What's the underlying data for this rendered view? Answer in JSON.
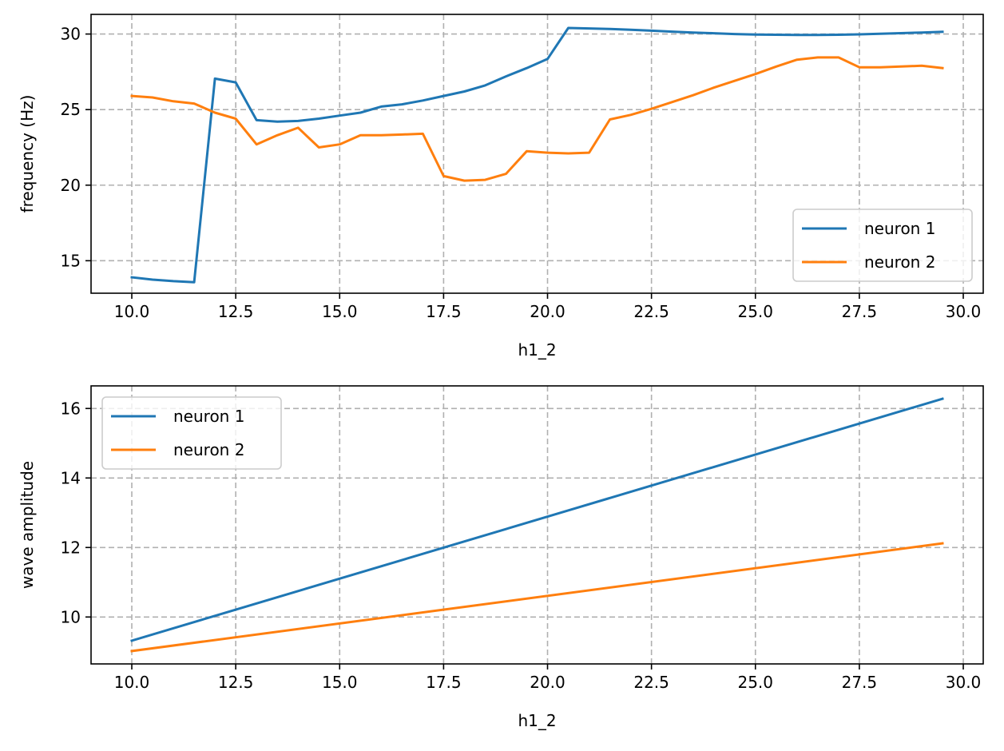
{
  "chart_data": [
    {
      "type": "line",
      "xlabel": "h1_2",
      "ylabel": "frequency (Hz)",
      "xlim": [
        9.02,
        30.48
      ],
      "ylim": [
        12.85,
        31.3
      ],
      "xticks": [
        10.0,
        12.5,
        15.0,
        17.5,
        20.0,
        22.5,
        25.0,
        27.5,
        30.0
      ],
      "xtick_labels": [
        "10.0",
        "12.5",
        "15.0",
        "17.5",
        "20.0",
        "22.5",
        "25.0",
        "27.5",
        "30.0"
      ],
      "yticks": [
        15,
        20,
        25,
        30
      ],
      "ytick_labels": [
        "15",
        "20",
        "25",
        "30"
      ],
      "grid": true,
      "legend_position": "lower-right",
      "series": [
        {
          "name": "neuron 1",
          "color": "#1f77b4",
          "x": [
            10.0,
            10.5,
            11.0,
            11.5,
            12.0,
            12.5,
            13.0,
            13.5,
            14.0,
            14.5,
            15.0,
            15.5,
            16.0,
            16.5,
            17.0,
            17.5,
            18.0,
            18.5,
            19.0,
            19.5,
            20.0,
            20.5,
            21.0,
            21.5,
            22.0,
            22.5,
            23.0,
            23.5,
            24.0,
            24.5,
            25.0,
            25.5,
            26.0,
            26.5,
            27.0,
            27.5,
            28.0,
            28.5,
            29.0,
            29.5
          ],
          "y": [
            13.9,
            13.75,
            13.65,
            13.58,
            27.05,
            26.8,
            24.3,
            24.2,
            24.25,
            24.4,
            24.6,
            24.8,
            25.2,
            25.35,
            25.6,
            25.9,
            26.2,
            26.6,
            27.2,
            27.75,
            28.35,
            30.4,
            30.37,
            30.33,
            30.28,
            30.22,
            30.16,
            30.1,
            30.05,
            30.0,
            29.97,
            29.95,
            29.94,
            29.94,
            29.95,
            29.98,
            30.02,
            30.06,
            30.1,
            30.15
          ]
        },
        {
          "name": "neuron 2",
          "color": "#ff7f0e",
          "x": [
            10.0,
            10.5,
            11.0,
            11.5,
            12.0,
            12.5,
            13.0,
            13.5,
            14.0,
            14.5,
            15.0,
            15.5,
            16.0,
            16.5,
            17.0,
            17.5,
            18.0,
            18.5,
            19.0,
            19.5,
            20.0,
            20.5,
            21.0,
            21.5,
            22.0,
            22.5,
            23.0,
            23.5,
            24.0,
            24.5,
            25.0,
            25.5,
            26.0,
            26.5,
            27.0,
            27.5,
            28.0,
            28.5,
            29.0,
            29.5
          ],
          "y": [
            25.9,
            25.8,
            25.55,
            25.4,
            24.8,
            24.4,
            22.7,
            23.3,
            23.8,
            22.5,
            22.7,
            23.3,
            23.3,
            23.35,
            23.4,
            20.6,
            20.3,
            20.35,
            20.75,
            22.25,
            22.15,
            22.1,
            22.15,
            24.35,
            24.65,
            25.05,
            25.5,
            25.95,
            26.45,
            26.9,
            27.35,
            27.85,
            28.3,
            28.45,
            28.45,
            27.8,
            27.8,
            27.85,
            27.9,
            27.75
          ]
        }
      ]
    },
    {
      "type": "line",
      "xlabel": "h1_2",
      "ylabel": "wave amplitude",
      "xlim": [
        9.02,
        30.48
      ],
      "ylim": [
        8.65,
        16.65
      ],
      "xticks": [
        10.0,
        12.5,
        15.0,
        17.5,
        20.0,
        22.5,
        25.0,
        27.5,
        30.0
      ],
      "xtick_labels": [
        "10.0",
        "12.5",
        "15.0",
        "17.5",
        "20.0",
        "22.5",
        "25.0",
        "27.5",
        "30.0"
      ],
      "yticks": [
        10,
        12,
        14,
        16
      ],
      "ytick_labels": [
        "10",
        "12",
        "14",
        "16"
      ],
      "grid": true,
      "legend_position": "upper-left",
      "series": [
        {
          "name": "neuron 1",
          "color": "#1f77b4",
          "x": [
            10.0,
            29.5
          ],
          "y": [
            9.32,
            16.28
          ]
        },
        {
          "name": "neuron 2",
          "color": "#ff7f0e",
          "x": [
            10.0,
            29.5
          ],
          "y": [
            9.02,
            12.12
          ]
        }
      ]
    }
  ]
}
